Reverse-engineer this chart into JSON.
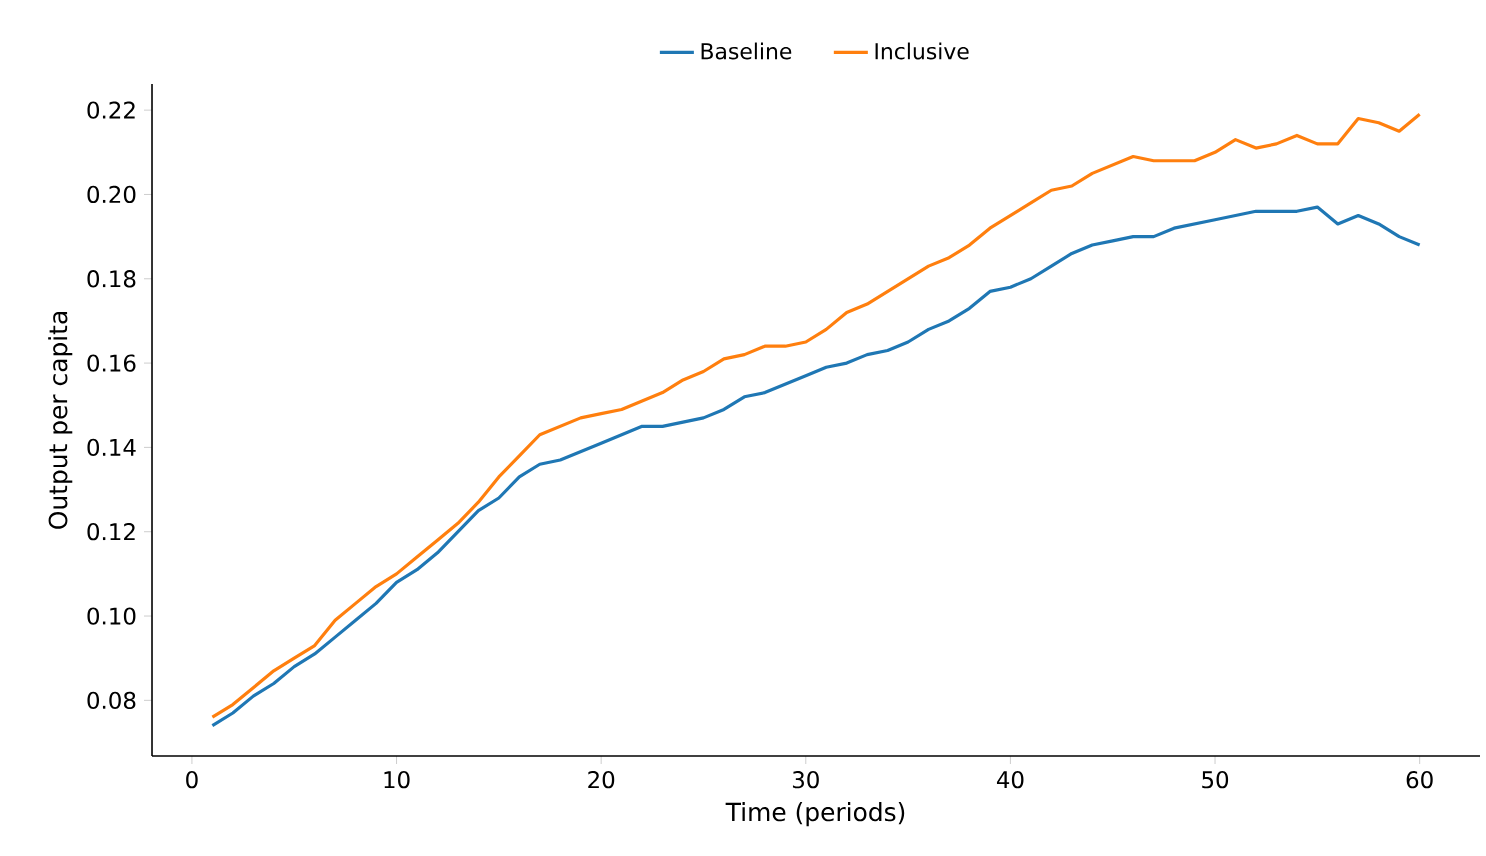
{
  "chart_data": {
    "type": "line",
    "xlabel": "Time (periods)",
    "ylabel": "Output per capita",
    "x": [
      1,
      2,
      3,
      4,
      5,
      6,
      7,
      8,
      9,
      10,
      11,
      12,
      13,
      14,
      15,
      16,
      17,
      18,
      19,
      20,
      21,
      22,
      23,
      24,
      25,
      26,
      27,
      28,
      29,
      30,
      31,
      32,
      33,
      34,
      35,
      36,
      37,
      38,
      39,
      40,
      41,
      42,
      43,
      44,
      45,
      46,
      47,
      48,
      49,
      50,
      51,
      52,
      53,
      54,
      55,
      56,
      57,
      58,
      59,
      60
    ],
    "series": [
      {
        "name": "Baseline",
        "color": "#1f77b4",
        "values": [
          0.074,
          0.077,
          0.081,
          0.084,
          0.088,
          0.091,
          0.095,
          0.099,
          0.103,
          0.108,
          0.111,
          0.115,
          0.12,
          0.125,
          0.128,
          0.133,
          0.136,
          0.137,
          0.139,
          0.141,
          0.143,
          0.145,
          0.145,
          0.146,
          0.147,
          0.149,
          0.152,
          0.153,
          0.155,
          0.157,
          0.159,
          0.16,
          0.162,
          0.163,
          0.165,
          0.168,
          0.17,
          0.173,
          0.177,
          0.178,
          0.18,
          0.183,
          0.186,
          0.188,
          0.189,
          0.19,
          0.19,
          0.192,
          0.193,
          0.194,
          0.195,
          0.196,
          0.196,
          0.196,
          0.197,
          0.193,
          0.195,
          0.193,
          0.19,
          0.188
        ]
      },
      {
        "name": "Inclusive",
        "color": "#ff7f0e",
        "values": [
          0.076,
          0.079,
          0.083,
          0.087,
          0.09,
          0.093,
          0.099,
          0.103,
          0.107,
          0.11,
          0.114,
          0.118,
          0.122,
          0.127,
          0.133,
          0.138,
          0.143,
          0.145,
          0.147,
          0.148,
          0.149,
          0.151,
          0.153,
          0.156,
          0.158,
          0.161,
          0.162,
          0.164,
          0.164,
          0.165,
          0.168,
          0.172,
          0.174,
          0.177,
          0.18,
          0.183,
          0.185,
          0.188,
          0.192,
          0.195,
          0.198,
          0.201,
          0.202,
          0.205,
          0.207,
          0.209,
          0.208,
          0.208,
          0.208,
          0.21,
          0.213,
          0.211,
          0.212,
          0.214,
          0.212,
          0.212,
          0.218,
          0.217,
          0.215,
          0.219
        ]
      }
    ],
    "xlim": [
      -1.95,
      62.95
    ],
    "ylim": [
      0.0668,
      0.2262
    ],
    "xticks": [
      0,
      10,
      20,
      30,
      40,
      50,
      60
    ],
    "yticks": [
      {
        "value": 0.08,
        "label": "0.08"
      },
      {
        "value": 0.1,
        "label": "0.10"
      },
      {
        "value": 0.12,
        "label": "0.12"
      },
      {
        "value": 0.14,
        "label": "0.14"
      },
      {
        "value": 0.16,
        "label": "0.16"
      },
      {
        "value": 0.18,
        "label": "0.18"
      },
      {
        "value": 0.2,
        "label": "0.20"
      },
      {
        "value": 0.22,
        "label": "0.22"
      }
    ],
    "legend": "top",
    "grid": false,
    "line_style": "solid"
  }
}
